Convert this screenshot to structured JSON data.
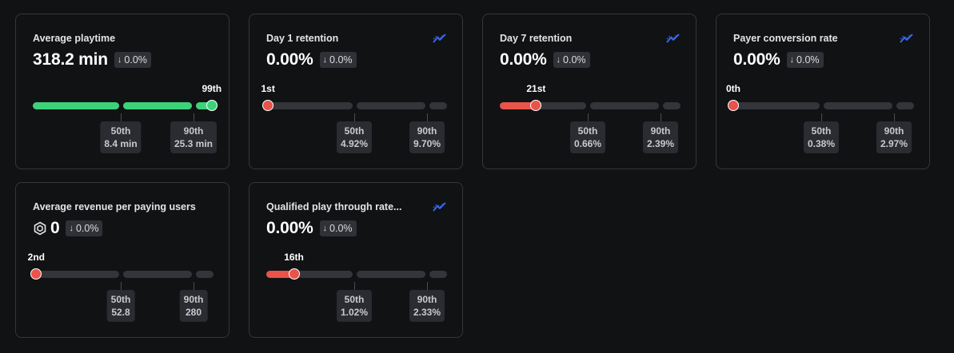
{
  "cards": [
    {
      "title": "Average playtime",
      "value": "318.2 min",
      "delta": "0.0%",
      "rank": "99th",
      "rank_position": 0.99,
      "p50": {
        "label": "50th",
        "value": "8.4 min"
      },
      "p90": {
        "label": "90th",
        "value": "25.3 min"
      },
      "has_trend_icon": false,
      "status_color": "#3dd27a"
    },
    {
      "title": "Day 1 retention",
      "value": "0.00%",
      "delta": "0.0%",
      "rank": "1st",
      "rank_position": 0.01,
      "p50": {
        "label": "50th",
        "value": "4.92%"
      },
      "p90": {
        "label": "90th",
        "value": "9.70%"
      },
      "has_trend_icon": true,
      "status_color": "#e8534a"
    },
    {
      "title": "Day 7 retention",
      "value": "0.00%",
      "delta": "0.0%",
      "rank": "21st",
      "rank_position": 0.21,
      "p50": {
        "label": "50th",
        "value": "0.66%"
      },
      "p90": {
        "label": "90th",
        "value": "2.39%"
      },
      "has_trend_icon": true,
      "status_color": "#e8534a"
    },
    {
      "title": "Payer conversion rate",
      "value": "0.00%",
      "delta": "0.0%",
      "rank": "0th",
      "rank_position": 0.0,
      "p50": {
        "label": "50th",
        "value": "0.38%"
      },
      "p90": {
        "label": "90th",
        "value": "2.97%"
      },
      "has_trend_icon": true,
      "status_color": "#e8534a"
    },
    {
      "title": "Average revenue per paying users",
      "value": "0",
      "delta": "0.0%",
      "rank": "2nd",
      "rank_position": 0.02,
      "p50": {
        "label": "50th",
        "value": "52.8"
      },
      "p90": {
        "label": "90th",
        "value": "280"
      },
      "has_trend_icon": false,
      "currency_icon": "robux-icon",
      "status_color": "#e8534a"
    },
    {
      "title": "Qualified play through rate...",
      "value": "0.00%",
      "delta": "0.0%",
      "rank": "16th",
      "rank_position": 0.16,
      "p50": {
        "label": "50th",
        "value": "1.02%"
      },
      "p90": {
        "label": "90th",
        "value": "2.33%"
      },
      "has_trend_icon": true,
      "status_color": "#e8534a"
    }
  ],
  "colors": {
    "background": "#111214",
    "card_border": "#34363b",
    "track": "#33353a",
    "good": "#3dd27a",
    "bad": "#e8534a",
    "trend_icon": "#3b6cf6"
  },
  "delta_icon": "arrow-down-icon",
  "trend_icon": "trend-chart-icon"
}
